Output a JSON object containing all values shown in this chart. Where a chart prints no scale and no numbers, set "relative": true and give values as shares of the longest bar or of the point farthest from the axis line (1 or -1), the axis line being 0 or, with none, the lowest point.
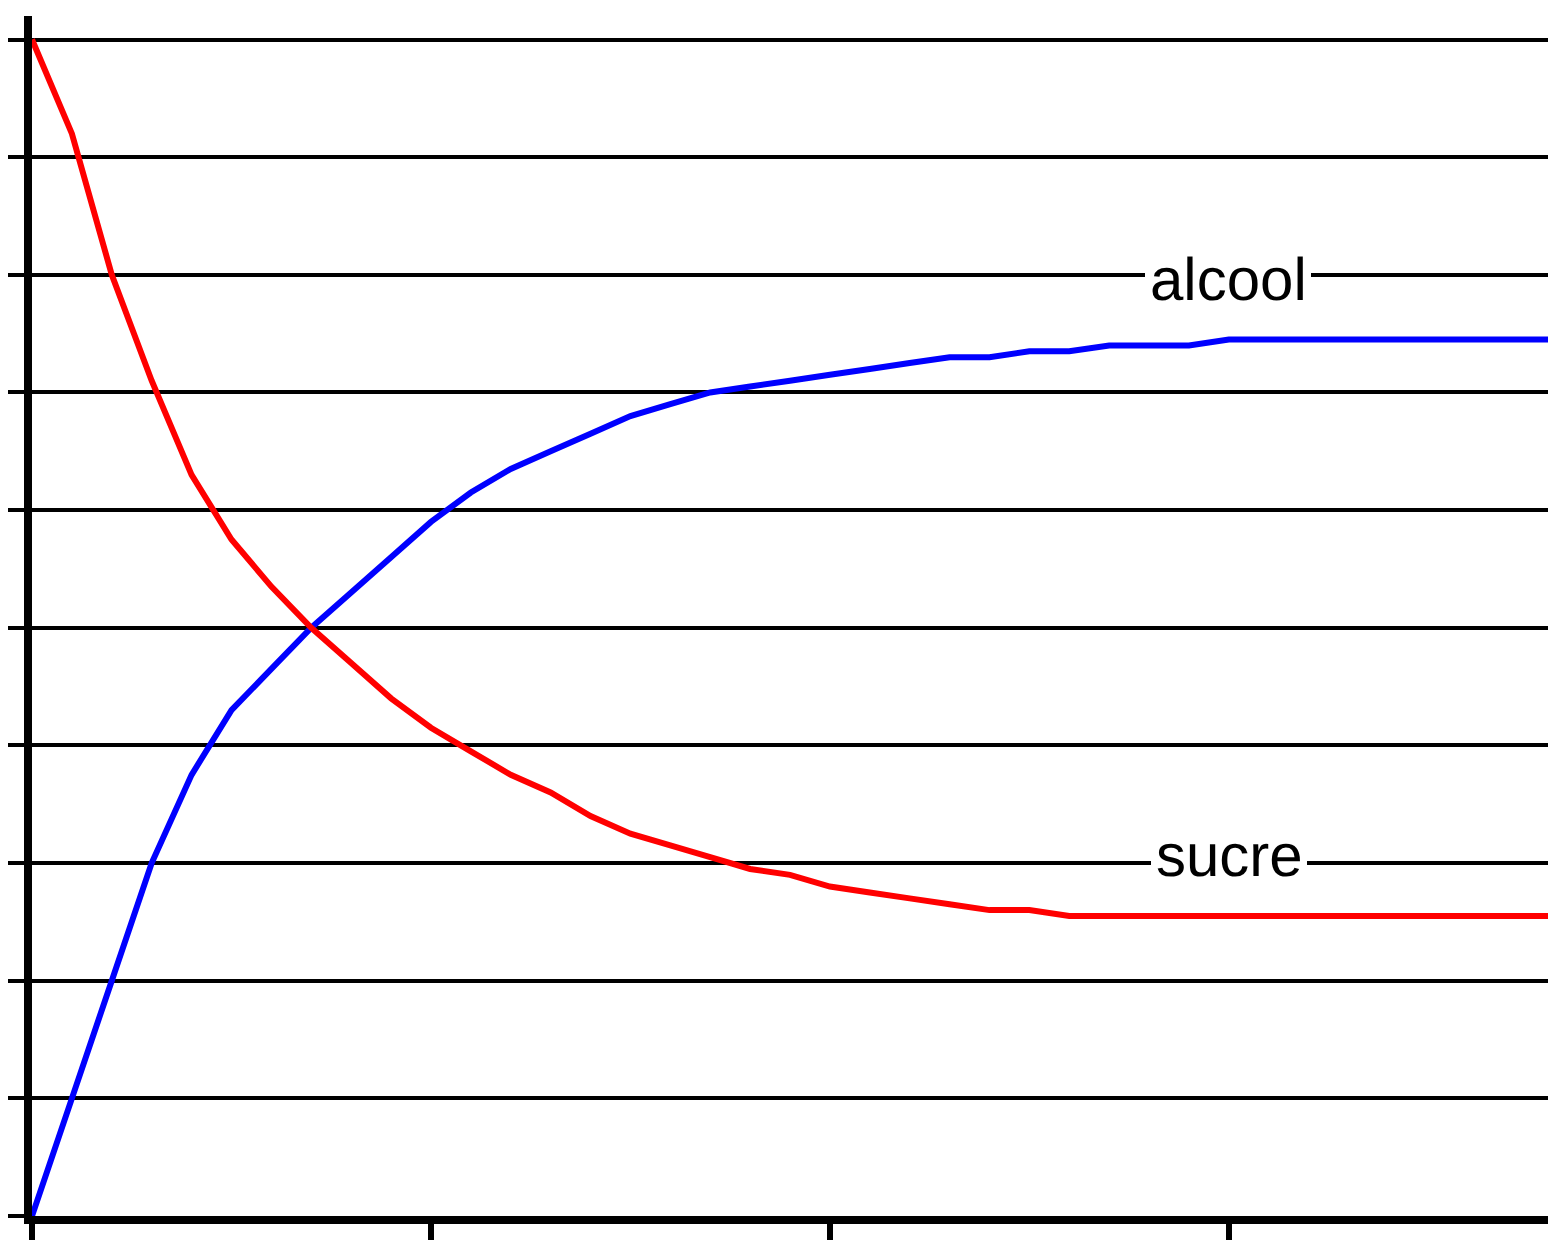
{
  "chart_data": {
    "type": "line",
    "relative": true,
    "grid": "y",
    "legend": false,
    "marker": "none",
    "line_style": "solid",
    "categories": [
      null,
      null,
      null,
      null,
      null,
      null,
      null,
      null,
      null,
      null,
      null,
      null,
      null,
      null,
      null,
      null,
      null,
      null,
      null,
      null,
      null,
      null,
      null,
      null,
      null,
      null,
      null,
      null,
      null,
      null,
      null,
      null,
      null,
      null,
      null,
      null,
      null,
      null,
      null
    ],
    "series": [
      {
        "name": "alcool",
        "color": "#0000ff",
        "values": [
          0,
          0.1,
          0.2,
          0.3,
          0.375,
          0.43,
          0.465,
          0.5,
          0.53,
          0.56,
          0.59,
          0.615,
          0.635,
          0.65,
          0.665,
          0.68,
          0.69,
          0.7,
          0.705,
          0.71,
          0.715,
          0.72,
          0.725,
          0.73,
          0.73,
          0.735,
          0.735,
          0.74,
          0.74,
          0.74,
          0.745,
          0.745,
          0.745,
          0.745,
          0.745,
          0.745,
          0.745,
          0.745,
          0.745
        ]
      },
      {
        "name": "sucre",
        "color": "#ff0000",
        "values": [
          1.0,
          0.92,
          0.8,
          0.71,
          0.63,
          0.575,
          0.535,
          0.5,
          0.47,
          0.44,
          0.415,
          0.395,
          0.375,
          0.36,
          0.34,
          0.325,
          0.315,
          0.305,
          0.295,
          0.29,
          0.28,
          0.275,
          0.27,
          0.265,
          0.26,
          0.26,
          0.255,
          0.255,
          0.255,
          0.255,
          0.255,
          0.255,
          0.255,
          0.255,
          0.255,
          0.255,
          0.255,
          0.255,
          0.255
        ]
      }
    ]
  }
}
